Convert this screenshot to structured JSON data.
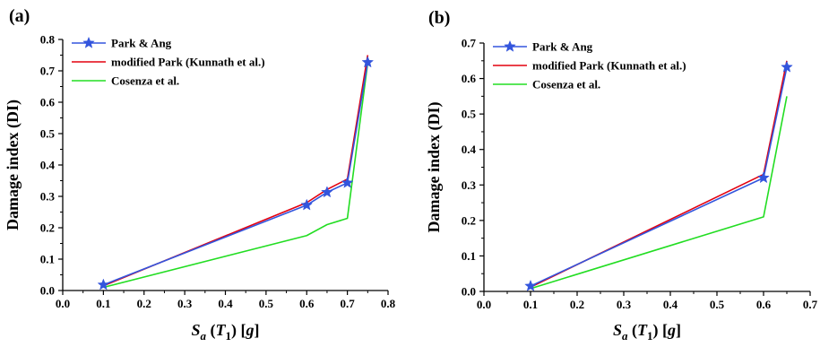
{
  "chart_data": [
    {
      "type": "line",
      "panel_label": "(a)",
      "xlabel": {
        "main": "S",
        "sub1": "a",
        "mid": " (T",
        "sub2": "1",
        "end": ") [g]"
      },
      "ylabel": "Damage index (DI)",
      "xlim": [
        0.0,
        0.8
      ],
      "ylim": [
        0.0,
        0.8
      ],
      "xticks": [
        "0.0",
        "0.1",
        "0.2",
        "0.3",
        "0.4",
        "0.5",
        "0.6",
        "0.7",
        "0.8"
      ],
      "yticks": [
        "0.0",
        "0.1",
        "0.2",
        "0.3",
        "0.4",
        "0.5",
        "0.6",
        "0.7",
        "0.8"
      ],
      "legend_position": "top-left",
      "grid": false,
      "series": [
        {
          "name": "Park & Ang",
          "color": "#3355dd",
          "marker": "star",
          "x": [
            0.1,
            0.6,
            0.65,
            0.7,
            0.75
          ],
          "y": [
            0.018,
            0.272,
            0.313,
            0.343,
            0.727
          ]
        },
        {
          "name": "modified Park (Kunnath et al.)",
          "color": "#e3000f",
          "marker": "none",
          "x": [
            0.1,
            0.6,
            0.65,
            0.7,
            0.75
          ],
          "y": [
            0.015,
            0.28,
            0.322,
            0.355,
            0.75
          ]
        },
        {
          "name": "Cosenza et al.",
          "color": "#22dd22",
          "marker": "none",
          "x": [
            0.1,
            0.6,
            0.65,
            0.7,
            0.75
          ],
          "y": [
            0.01,
            0.175,
            0.21,
            0.23,
            0.725
          ]
        }
      ]
    },
    {
      "type": "line",
      "panel_label": "(b)",
      "xlabel": {
        "main": "S",
        "sub1": "a",
        "mid": " (T",
        "sub2": "1",
        "end": ") [g]"
      },
      "ylabel": "Damage index (DI)",
      "xlim": [
        0.0,
        0.7
      ],
      "ylim": [
        0.0,
        0.7
      ],
      "xticks": [
        "0.0",
        "0.1",
        "0.2",
        "0.3",
        "0.4",
        "0.5",
        "0.6",
        "0.7"
      ],
      "yticks": [
        "0.0",
        "0.1",
        "0.2",
        "0.3",
        "0.4",
        "0.5",
        "0.6",
        "0.7"
      ],
      "legend_position": "top-left",
      "grid": false,
      "series": [
        {
          "name": "Park & Ang",
          "color": "#3355dd",
          "marker": "star",
          "x": [
            0.1,
            0.6,
            0.65
          ],
          "y": [
            0.015,
            0.32,
            0.632
          ]
        },
        {
          "name": "modified Park (Kunnath et al.)",
          "color": "#e3000f",
          "marker": "none",
          "x": [
            0.1,
            0.6,
            0.65
          ],
          "y": [
            0.012,
            0.33,
            0.65
          ]
        },
        {
          "name": "Cosenza et al.",
          "color": "#22dd22",
          "marker": "none",
          "x": [
            0.1,
            0.6,
            0.65
          ],
          "y": [
            0.008,
            0.21,
            0.55
          ]
        }
      ]
    }
  ]
}
